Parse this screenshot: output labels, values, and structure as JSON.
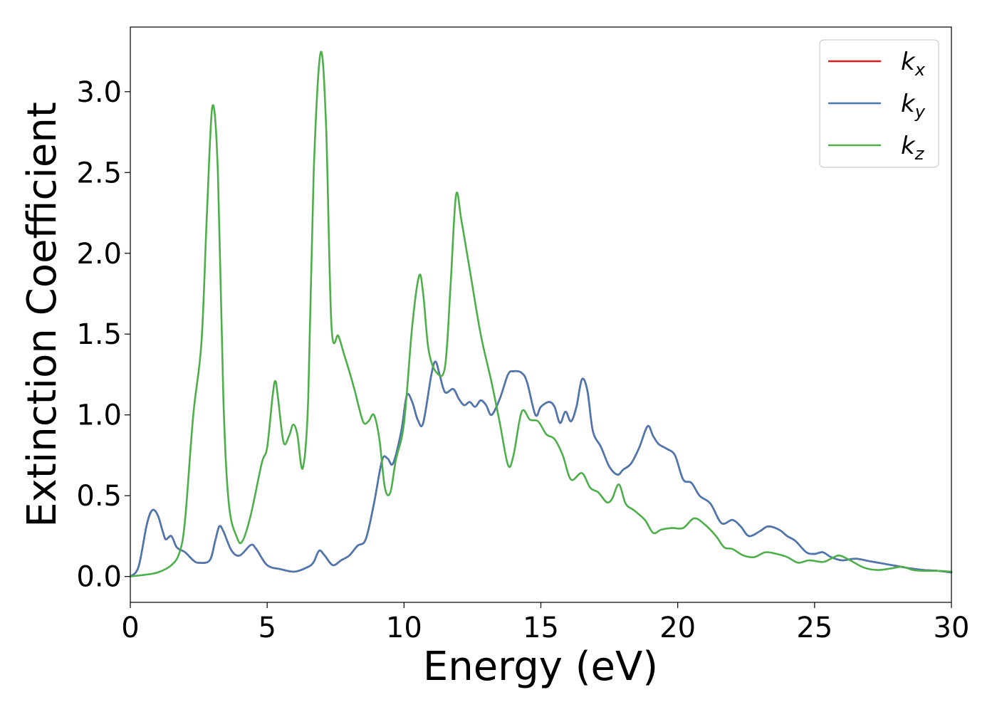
{
  "chart_data": {
    "type": "line",
    "title": "",
    "xlabel": "Energy (eV)",
    "ylabel": "Extinction Coefficient",
    "xlim": [
      0,
      30
    ],
    "ylim": [
      -0.16,
      3.4
    ],
    "xticks": [
      0,
      5,
      10,
      15,
      20,
      25,
      30
    ],
    "xtick_labels": [
      "0",
      "5",
      "10",
      "15",
      "20",
      "25",
      "30"
    ],
    "yticks": [
      0.0,
      0.5,
      1.0,
      1.5,
      2.0,
      2.5,
      3.0
    ],
    "ytick_labels": [
      "0.0",
      "0.5",
      "1.0",
      "1.5",
      "2.0",
      "2.5",
      "3.0"
    ],
    "grid": false,
    "legend_position": "top-right",
    "series": [
      {
        "name": "k",
        "subscript": "x",
        "color": "#e41a1c",
        "points": [
          [
            0,
            0.0
          ],
          [
            0.3,
            0.06
          ],
          [
            0.6,
            0.32
          ],
          [
            0.8,
            0.41
          ],
          [
            1.0,
            0.38
          ],
          [
            1.2,
            0.27
          ],
          [
            1.3,
            0.23
          ],
          [
            1.5,
            0.25
          ],
          [
            1.7,
            0.18
          ],
          [
            2.0,
            0.15
          ],
          [
            2.3,
            0.1
          ],
          [
            2.5,
            0.085
          ],
          [
            2.9,
            0.1
          ],
          [
            3.1,
            0.22
          ],
          [
            3.25,
            0.31
          ],
          [
            3.4,
            0.28
          ],
          [
            3.7,
            0.16
          ],
          [
            4.0,
            0.13
          ],
          [
            4.4,
            0.195
          ],
          [
            4.6,
            0.17
          ],
          [
            5.0,
            0.07
          ],
          [
            5.5,
            0.045
          ],
          [
            6.0,
            0.03
          ],
          [
            6.5,
            0.06
          ],
          [
            6.7,
            0.09
          ],
          [
            6.9,
            0.16
          ],
          [
            7.1,
            0.13
          ],
          [
            7.4,
            0.07
          ],
          [
            7.7,
            0.1
          ],
          [
            8.0,
            0.13
          ],
          [
            8.3,
            0.19
          ],
          [
            8.6,
            0.23
          ],
          [
            8.9,
            0.45
          ],
          [
            9.2,
            0.72
          ],
          [
            9.4,
            0.73
          ],
          [
            9.6,
            0.7
          ],
          [
            9.9,
            0.9
          ],
          [
            10.1,
            1.12
          ],
          [
            10.3,
            1.08
          ],
          [
            10.5,
            0.97
          ],
          [
            10.7,
            0.95
          ],
          [
            11.0,
            1.25
          ],
          [
            11.15,
            1.33
          ],
          [
            11.3,
            1.25
          ],
          [
            11.5,
            1.14
          ],
          [
            11.8,
            1.16
          ],
          [
            12.0,
            1.1
          ],
          [
            12.2,
            1.06
          ],
          [
            12.4,
            1.08
          ],
          [
            12.6,
            1.05
          ],
          [
            12.8,
            1.09
          ],
          [
            13.0,
            1.06
          ],
          [
            13.2,
            1.0
          ],
          [
            13.5,
            1.1
          ],
          [
            13.8,
            1.25
          ],
          [
            14.0,
            1.27
          ],
          [
            14.3,
            1.26
          ],
          [
            14.5,
            1.2
          ],
          [
            14.8,
            1.0
          ],
          [
            15.0,
            1.05
          ],
          [
            15.3,
            1.08
          ],
          [
            15.5,
            1.05
          ],
          [
            15.7,
            0.95
          ],
          [
            15.9,
            1.02
          ],
          [
            16.1,
            0.96
          ],
          [
            16.3,
            1.05
          ],
          [
            16.5,
            1.22
          ],
          [
            16.7,
            1.15
          ],
          [
            16.9,
            0.9
          ],
          [
            17.2,
            0.8
          ],
          [
            17.5,
            0.68
          ],
          [
            17.8,
            0.63
          ],
          [
            18.0,
            0.66
          ],
          [
            18.3,
            0.7
          ],
          [
            18.6,
            0.8
          ],
          [
            18.9,
            0.93
          ],
          [
            19.1,
            0.87
          ],
          [
            19.3,
            0.82
          ],
          [
            19.6,
            0.79
          ],
          [
            19.9,
            0.75
          ],
          [
            20.2,
            0.6
          ],
          [
            20.5,
            0.58
          ],
          [
            20.8,
            0.5
          ],
          [
            21.2,
            0.45
          ],
          [
            21.6,
            0.33
          ],
          [
            22.0,
            0.35
          ],
          [
            22.3,
            0.31
          ],
          [
            22.6,
            0.25
          ],
          [
            23.0,
            0.28
          ],
          [
            23.3,
            0.31
          ],
          [
            23.7,
            0.29
          ],
          [
            24.0,
            0.25
          ],
          [
            24.3,
            0.22
          ],
          [
            24.7,
            0.15
          ],
          [
            25.0,
            0.14
          ],
          [
            25.3,
            0.15
          ],
          [
            25.6,
            0.12
          ],
          [
            26.0,
            0.1
          ],
          [
            26.5,
            0.11
          ],
          [
            27.0,
            0.095
          ],
          [
            27.5,
            0.08
          ],
          [
            28.0,
            0.065
          ],
          [
            28.5,
            0.05
          ],
          [
            29.0,
            0.04
          ],
          [
            29.5,
            0.035
          ],
          [
            30.0,
            0.025
          ]
        ]
      },
      {
        "name": "k",
        "subscript": "y",
        "color": "#4a78b0",
        "points": [
          [
            0,
            0.0
          ],
          [
            0.3,
            0.06
          ],
          [
            0.6,
            0.32
          ],
          [
            0.8,
            0.41
          ],
          [
            1.0,
            0.38
          ],
          [
            1.2,
            0.27
          ],
          [
            1.3,
            0.23
          ],
          [
            1.5,
            0.25
          ],
          [
            1.7,
            0.18
          ],
          [
            2.0,
            0.15
          ],
          [
            2.3,
            0.1
          ],
          [
            2.5,
            0.085
          ],
          [
            2.9,
            0.1
          ],
          [
            3.1,
            0.22
          ],
          [
            3.25,
            0.31
          ],
          [
            3.4,
            0.28
          ],
          [
            3.7,
            0.16
          ],
          [
            4.0,
            0.13
          ],
          [
            4.4,
            0.195
          ],
          [
            4.6,
            0.17
          ],
          [
            5.0,
            0.07
          ],
          [
            5.5,
            0.045
          ],
          [
            6.0,
            0.03
          ],
          [
            6.5,
            0.06
          ],
          [
            6.7,
            0.09
          ],
          [
            6.9,
            0.16
          ],
          [
            7.1,
            0.13
          ],
          [
            7.4,
            0.07
          ],
          [
            7.7,
            0.1
          ],
          [
            8.0,
            0.13
          ],
          [
            8.3,
            0.19
          ],
          [
            8.6,
            0.23
          ],
          [
            8.9,
            0.45
          ],
          [
            9.2,
            0.72
          ],
          [
            9.4,
            0.73
          ],
          [
            9.6,
            0.7
          ],
          [
            9.9,
            0.9
          ],
          [
            10.1,
            1.12
          ],
          [
            10.3,
            1.08
          ],
          [
            10.5,
            0.97
          ],
          [
            10.7,
            0.95
          ],
          [
            11.0,
            1.25
          ],
          [
            11.15,
            1.33
          ],
          [
            11.3,
            1.25
          ],
          [
            11.5,
            1.14
          ],
          [
            11.8,
            1.16
          ],
          [
            12.0,
            1.1
          ],
          [
            12.2,
            1.06
          ],
          [
            12.4,
            1.08
          ],
          [
            12.6,
            1.05
          ],
          [
            12.8,
            1.09
          ],
          [
            13.0,
            1.06
          ],
          [
            13.2,
            1.0
          ],
          [
            13.5,
            1.1
          ],
          [
            13.8,
            1.25
          ],
          [
            14.0,
            1.27
          ],
          [
            14.3,
            1.26
          ],
          [
            14.5,
            1.2
          ],
          [
            14.8,
            1.0
          ],
          [
            15.0,
            1.05
          ],
          [
            15.3,
            1.08
          ],
          [
            15.5,
            1.05
          ],
          [
            15.7,
            0.95
          ],
          [
            15.9,
            1.02
          ],
          [
            16.1,
            0.96
          ],
          [
            16.3,
            1.05
          ],
          [
            16.5,
            1.22
          ],
          [
            16.7,
            1.15
          ],
          [
            16.9,
            0.9
          ],
          [
            17.2,
            0.8
          ],
          [
            17.5,
            0.68
          ],
          [
            17.8,
            0.63
          ],
          [
            18.0,
            0.66
          ],
          [
            18.3,
            0.7
          ],
          [
            18.6,
            0.8
          ],
          [
            18.9,
            0.93
          ],
          [
            19.1,
            0.87
          ],
          [
            19.3,
            0.82
          ],
          [
            19.6,
            0.79
          ],
          [
            19.9,
            0.75
          ],
          [
            20.2,
            0.6
          ],
          [
            20.5,
            0.58
          ],
          [
            20.8,
            0.5
          ],
          [
            21.2,
            0.45
          ],
          [
            21.6,
            0.33
          ],
          [
            22.0,
            0.35
          ],
          [
            22.3,
            0.31
          ],
          [
            22.6,
            0.25
          ],
          [
            23.0,
            0.28
          ],
          [
            23.3,
            0.31
          ],
          [
            23.7,
            0.29
          ],
          [
            24.0,
            0.25
          ],
          [
            24.3,
            0.22
          ],
          [
            24.7,
            0.15
          ],
          [
            25.0,
            0.14
          ],
          [
            25.3,
            0.15
          ],
          [
            25.6,
            0.12
          ],
          [
            26.0,
            0.1
          ],
          [
            26.5,
            0.11
          ],
          [
            27.0,
            0.095
          ],
          [
            27.5,
            0.08
          ],
          [
            28.0,
            0.065
          ],
          [
            28.5,
            0.05
          ],
          [
            29.0,
            0.04
          ],
          [
            29.5,
            0.035
          ],
          [
            30.0,
            0.025
          ]
        ]
      },
      {
        "name": "k",
        "subscript": "z",
        "color": "#4daf4a",
        "points": [
          [
            0,
            0.0
          ],
          [
            0.5,
            0.01
          ],
          [
            1.0,
            0.025
          ],
          [
            1.5,
            0.07
          ],
          [
            1.8,
            0.15
          ],
          [
            2.0,
            0.35
          ],
          [
            2.3,
            1.0
          ],
          [
            2.6,
            1.45
          ],
          [
            2.8,
            2.25
          ],
          [
            3.0,
            2.91
          ],
          [
            3.2,
            2.5
          ],
          [
            3.4,
            1.1
          ],
          [
            3.6,
            0.45
          ],
          [
            3.9,
            0.24
          ],
          [
            4.1,
            0.22
          ],
          [
            4.4,
            0.38
          ],
          [
            4.8,
            0.7
          ],
          [
            5.0,
            0.8
          ],
          [
            5.2,
            1.12
          ],
          [
            5.3,
            1.21
          ],
          [
            5.4,
            1.1
          ],
          [
            5.6,
            0.83
          ],
          [
            5.8,
            0.87
          ],
          [
            5.95,
            0.94
          ],
          [
            6.1,
            0.88
          ],
          [
            6.3,
            0.67
          ],
          [
            6.5,
            1.1
          ],
          [
            6.7,
            2.5
          ],
          [
            6.95,
            3.24
          ],
          [
            7.15,
            2.8
          ],
          [
            7.35,
            1.55
          ],
          [
            7.6,
            1.49
          ],
          [
            7.8,
            1.38
          ],
          [
            8.0,
            1.27
          ],
          [
            8.2,
            1.15
          ],
          [
            8.5,
            0.96
          ],
          [
            8.7,
            0.96
          ],
          [
            8.9,
            1.0
          ],
          [
            9.1,
            0.85
          ],
          [
            9.3,
            0.55
          ],
          [
            9.5,
            0.52
          ],
          [
            9.7,
            0.72
          ],
          [
            10.0,
            0.95
          ],
          [
            10.3,
            1.55
          ],
          [
            10.55,
            1.86
          ],
          [
            10.7,
            1.75
          ],
          [
            10.9,
            1.4
          ],
          [
            11.2,
            1.26
          ],
          [
            11.5,
            1.3
          ],
          [
            11.7,
            1.8
          ],
          [
            11.9,
            2.36
          ],
          [
            12.1,
            2.2
          ],
          [
            12.4,
            1.9
          ],
          [
            12.8,
            1.5
          ],
          [
            13.2,
            1.2
          ],
          [
            13.5,
            0.95
          ],
          [
            13.8,
            0.69
          ],
          [
            14.0,
            0.75
          ],
          [
            14.3,
            1.02
          ],
          [
            14.6,
            0.97
          ],
          [
            14.9,
            0.96
          ],
          [
            15.2,
            0.88
          ],
          [
            15.5,
            0.85
          ],
          [
            15.8,
            0.75
          ],
          [
            16.1,
            0.6
          ],
          [
            16.5,
            0.64
          ],
          [
            16.8,
            0.55
          ],
          [
            17.1,
            0.52
          ],
          [
            17.4,
            0.46
          ],
          [
            17.6,
            0.48
          ],
          [
            17.85,
            0.57
          ],
          [
            18.1,
            0.45
          ],
          [
            18.4,
            0.41
          ],
          [
            18.8,
            0.35
          ],
          [
            19.1,
            0.27
          ],
          [
            19.4,
            0.29
          ],
          [
            19.8,
            0.3
          ],
          [
            20.2,
            0.3
          ],
          [
            20.6,
            0.36
          ],
          [
            21.0,
            0.32
          ],
          [
            21.4,
            0.25
          ],
          [
            21.7,
            0.18
          ],
          [
            22.0,
            0.17
          ],
          [
            22.4,
            0.13
          ],
          [
            22.8,
            0.12
          ],
          [
            23.2,
            0.15
          ],
          [
            23.6,
            0.14
          ],
          [
            24.0,
            0.12
          ],
          [
            24.4,
            0.085
          ],
          [
            24.8,
            0.1
          ],
          [
            25.3,
            0.09
          ],
          [
            25.6,
            0.11
          ],
          [
            25.9,
            0.13
          ],
          [
            26.3,
            0.1
          ],
          [
            26.8,
            0.055
          ],
          [
            27.3,
            0.04
          ],
          [
            27.8,
            0.05
          ],
          [
            28.2,
            0.06
          ],
          [
            28.6,
            0.04
          ],
          [
            29.0,
            0.035
          ],
          [
            29.5,
            0.035
          ],
          [
            30.0,
            0.03
          ]
        ]
      }
    ]
  }
}
